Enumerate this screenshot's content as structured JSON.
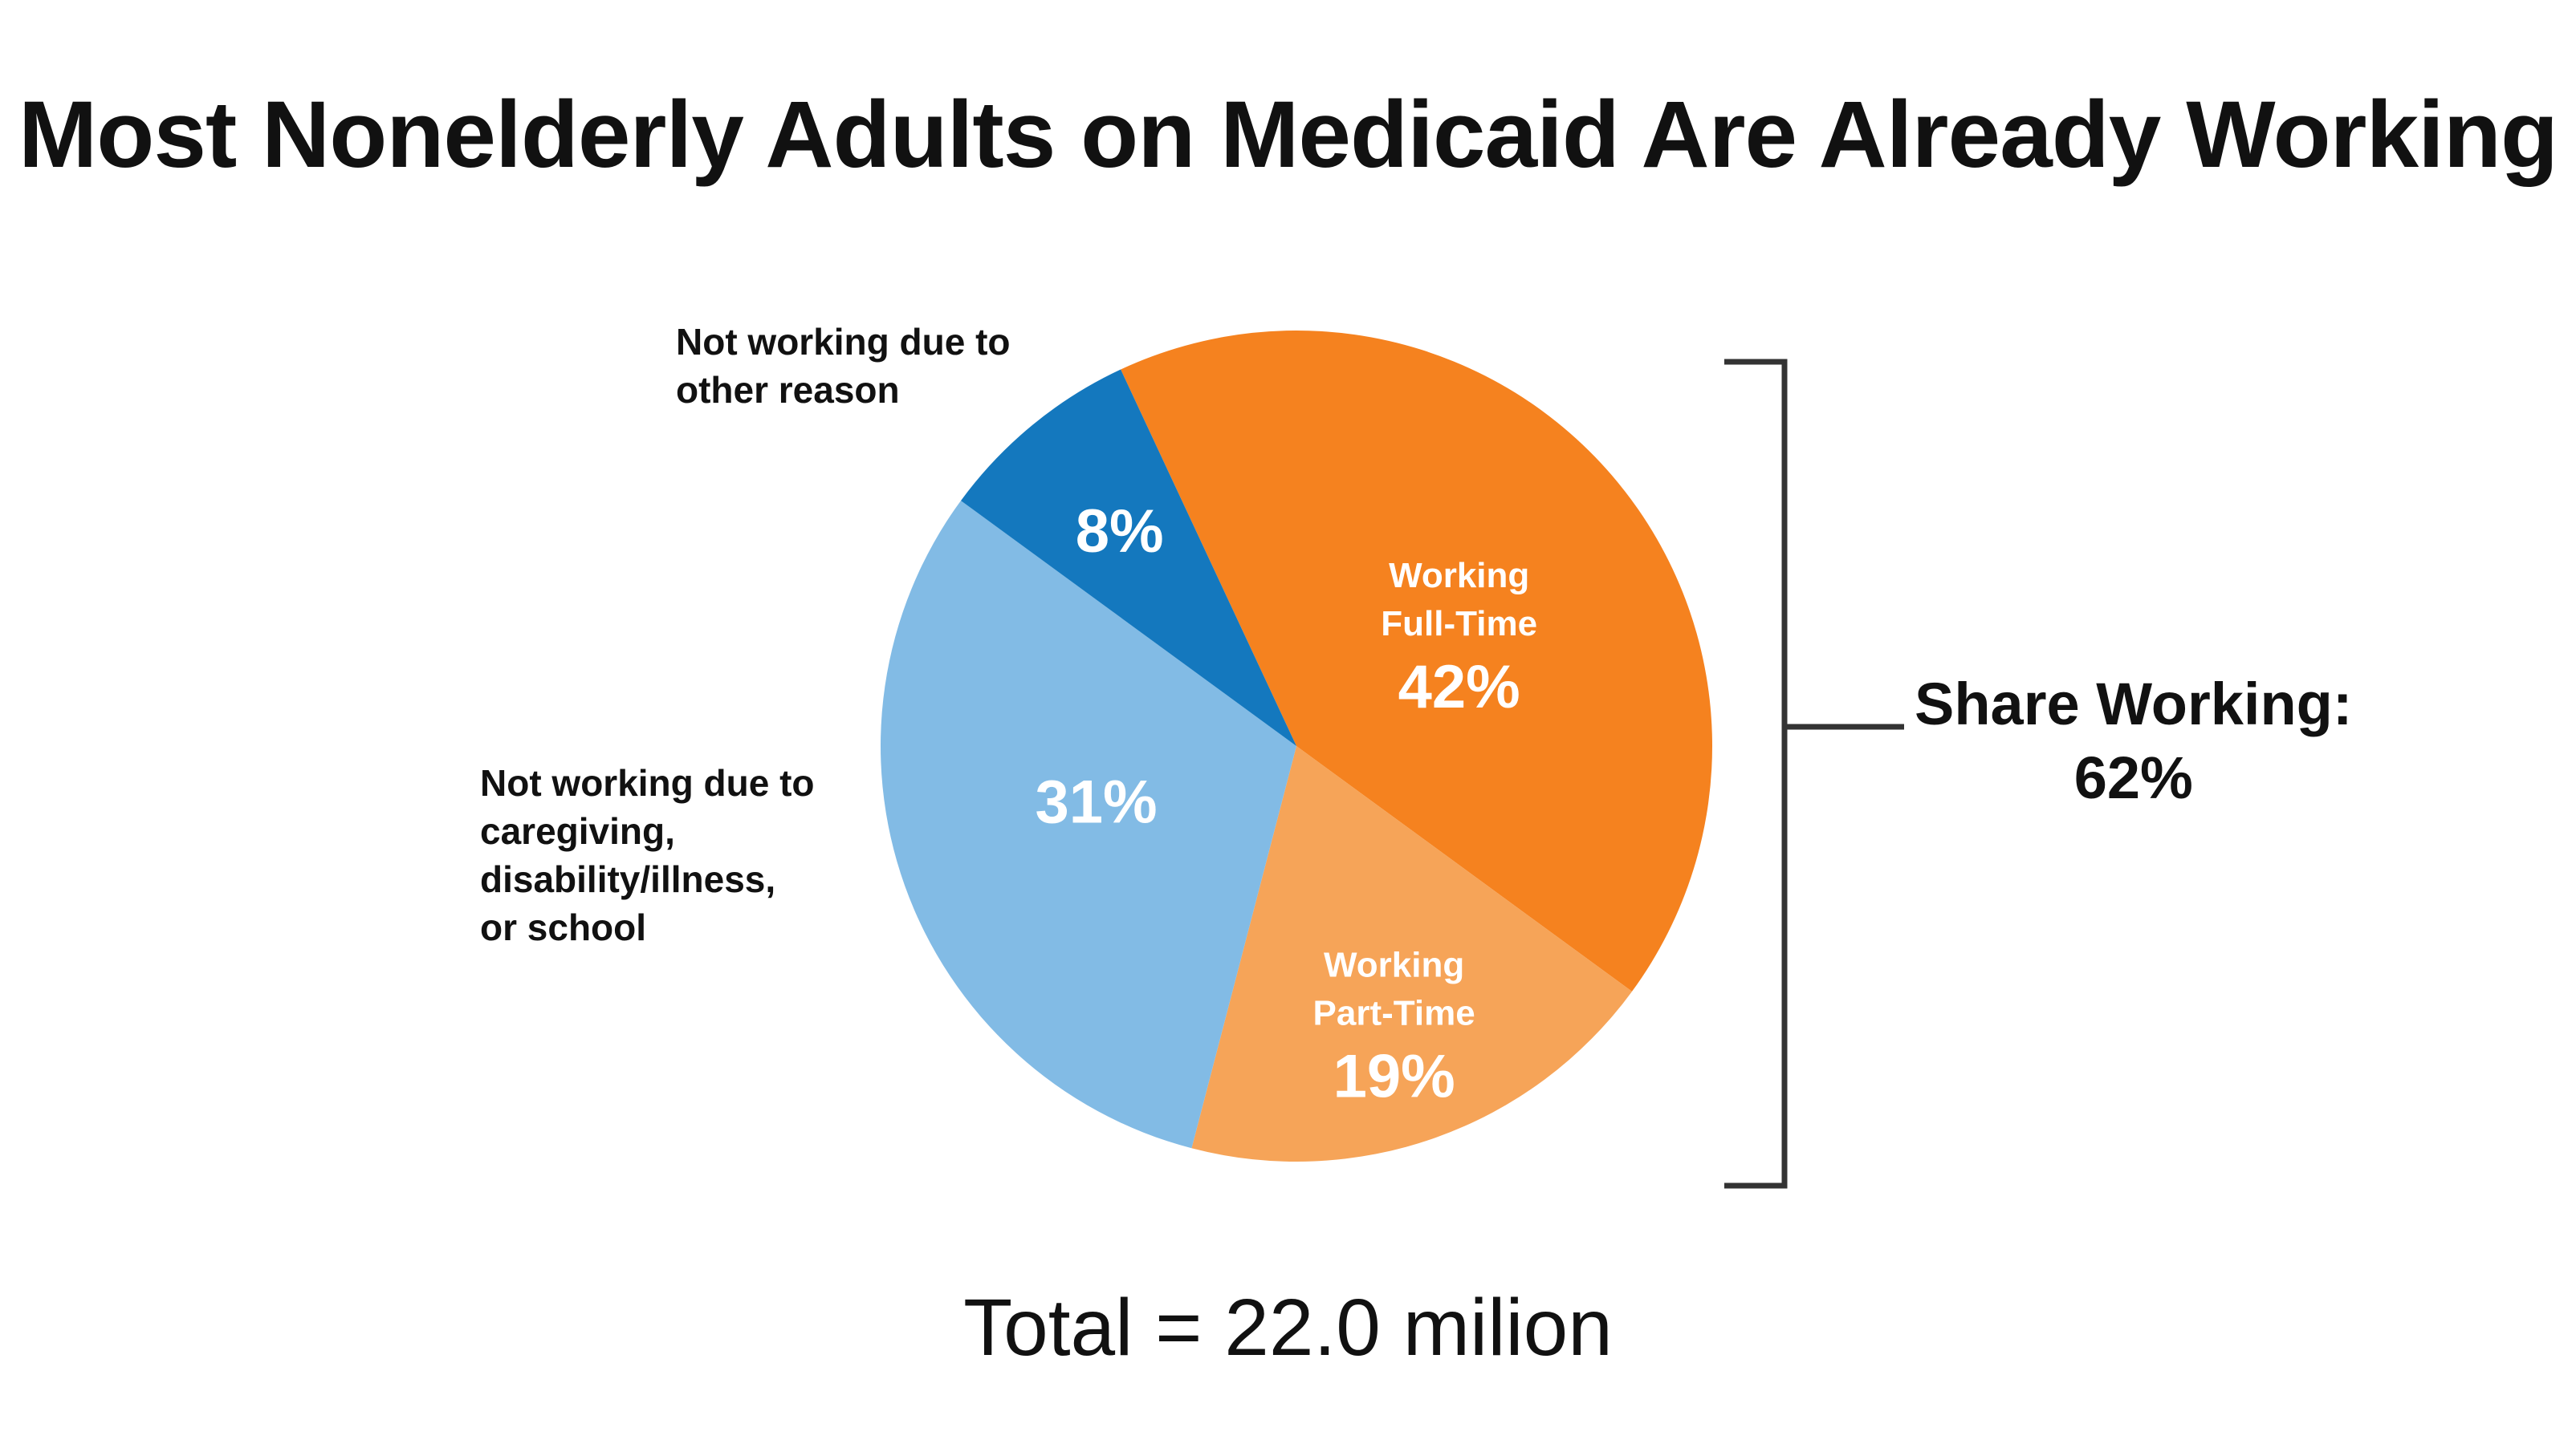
{
  "title": "Most Nonelderly Adults on Medicaid Are Already Working",
  "total": "Total = 22.0 milion",
  "share_working": {
    "label": "Share Working:",
    "value": "62%"
  },
  "labels": {
    "not_working_other": [
      "Not working due to",
      "other reason"
    ],
    "not_working_caregiving": [
      "Not working due to",
      "caregiving,",
      "disability/illness,",
      "or school"
    ]
  },
  "colors": {
    "full_time": "#F5821F",
    "part_time": "#F6A458",
    "caregiving": "#82BBE5",
    "other": "#1478BE",
    "bracket": "#333333",
    "text": "#111111"
  },
  "chart_data": {
    "type": "pie",
    "title": "Most Nonelderly Adults on Medicaid Are Already Working",
    "slices": [
      {
        "name": "Working Full-Time",
        "label_lines": [
          "Working",
          "Full-Time"
        ],
        "value": 42,
        "value_label": "42%",
        "color": "#F5821F"
      },
      {
        "name": "Working Part-Time",
        "label_lines": [
          "Working",
          "Part-Time"
        ],
        "value": 19,
        "value_label": "19%",
        "color": "#F6A458"
      },
      {
        "name": "Not working due to caregiving, disability/illness, or school",
        "label_lines": [],
        "value": 31,
        "value_label": "31%",
        "color": "#82BBE5"
      },
      {
        "name": "Not working due to other reason",
        "label_lines": [],
        "value": 8,
        "value_label": "8%",
        "color": "#1478BE"
      }
    ],
    "start_angle_deg": -25,
    "direction": "clockwise",
    "total": "22.0 milion"
  }
}
